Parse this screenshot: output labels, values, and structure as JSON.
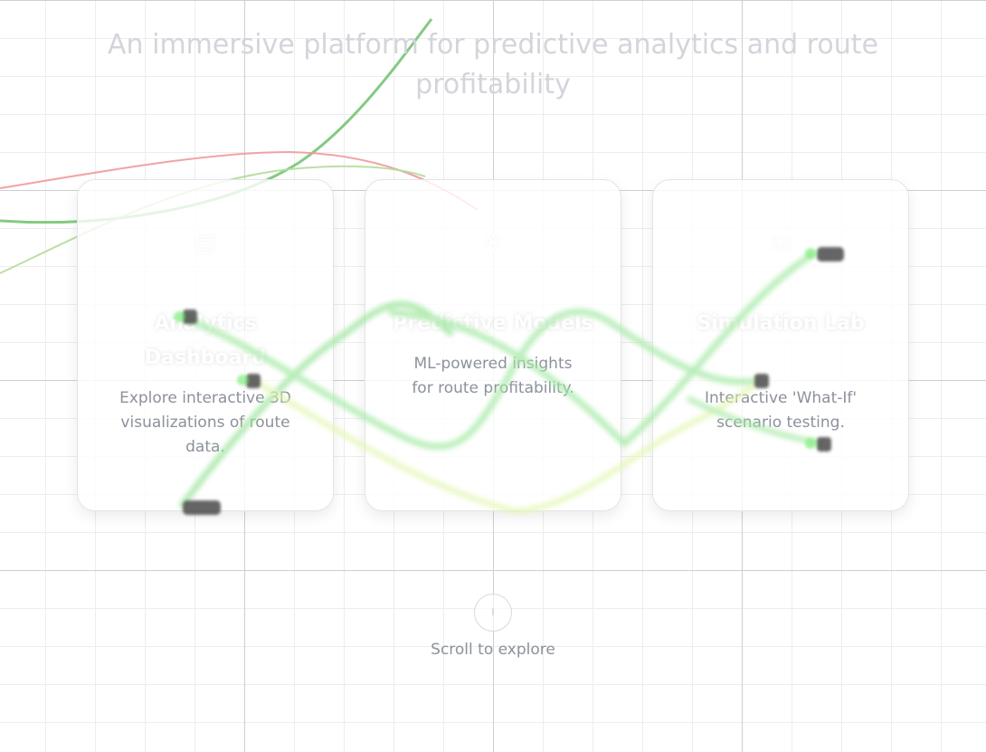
{
  "hero": {
    "subtitle": "An immersive platform for predictive analytics and route profitability"
  },
  "cards": [
    {
      "icon": "chart-icon",
      "title": "Analytics Dashboard",
      "description": "Explore interactive 3D visualizations of route data."
    },
    {
      "icon": "brain-icon",
      "title": "Predictive Models",
      "description": "ML-powered insights for route profitability."
    },
    {
      "icon": "simulation-icon",
      "title": "Simulation Lab",
      "description": "Interactive 'What-If' scenario testing."
    }
  ],
  "scroll": {
    "label": "Scroll to explore",
    "icon": "mouse-icon"
  },
  "colors": {
    "background": "#ffffff",
    "grid": "#e6e6e6",
    "curve_green": "#5cb85c",
    "curve_light_green": "#a8d68a",
    "curve_red": "#f0a0a0",
    "route_glow": "#9ef09e",
    "muted_text": "#8c919b",
    "subtitle_text": "#d3d5db"
  }
}
